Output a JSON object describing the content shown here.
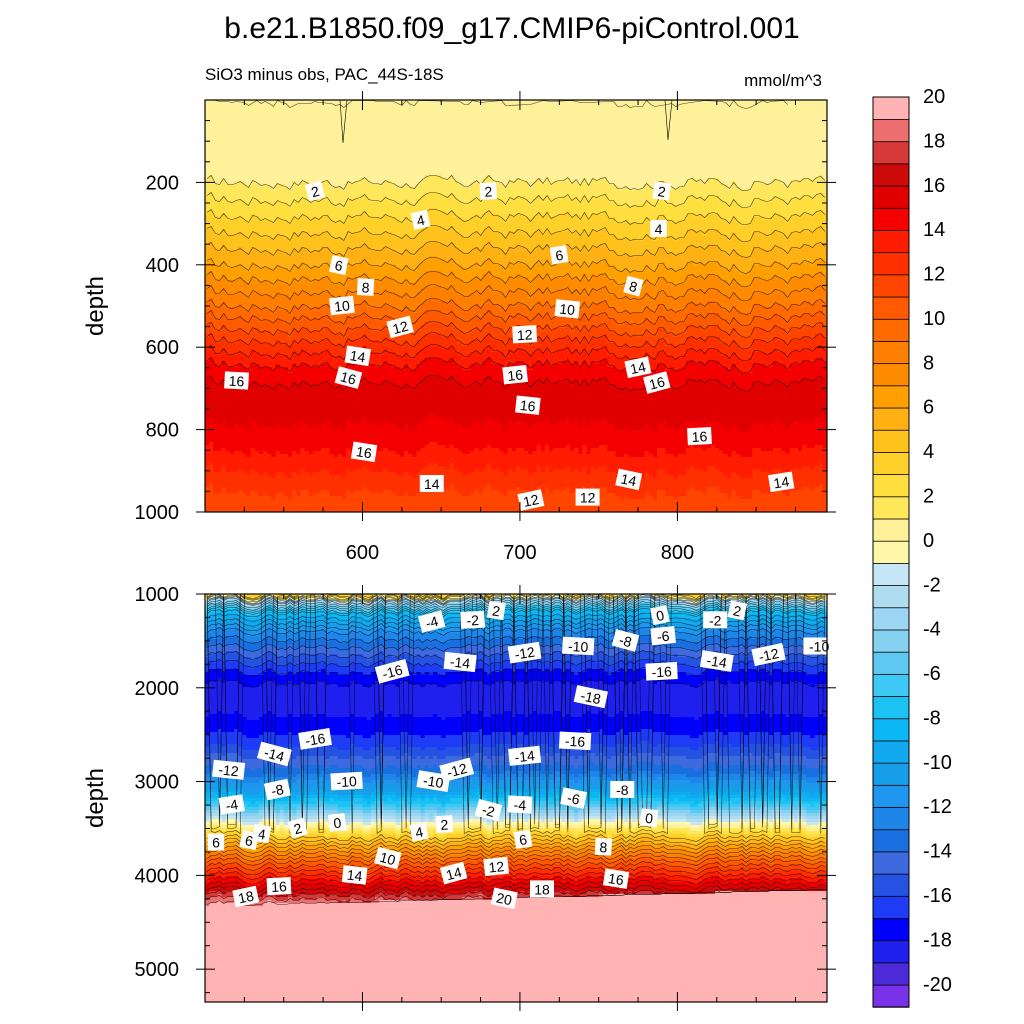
{
  "chart_data": [
    {
      "type": "heatmap",
      "panel": "upper",
      "title": "b.e21.B1850.f09_g17.CMIP6-piControl.001",
      "subtitle_left": "SiO3 minus obs, PAC_44S-18S",
      "subtitle_right": "mmol/m^3",
      "xlabel": "",
      "ylabel": "depth",
      "xlim": [
        500,
        895
      ],
      "ylim": [
        1000,
        0
      ],
      "xticks": [
        600,
        700,
        800
      ],
      "yticks": [
        200,
        400,
        600,
        800,
        1000
      ],
      "contour_levels_shown": [
        2,
        4,
        6,
        8,
        10,
        12,
        14,
        16
      ],
      "contour_labels": [
        {
          "text": "2",
          "x": 570,
          "y": 222
        },
        {
          "text": "2",
          "x": 680,
          "y": 222
        },
        {
          "text": "2",
          "x": 790,
          "y": 222
        },
        {
          "text": "4",
          "x": 637,
          "y": 292
        },
        {
          "text": "4",
          "x": 788,
          "y": 313
        },
        {
          "text": "6",
          "x": 585,
          "y": 402
        },
        {
          "text": "6",
          "x": 725,
          "y": 377
        },
        {
          "text": "8",
          "x": 602,
          "y": 455
        },
        {
          "text": "8",
          "x": 772,
          "y": 453
        },
        {
          "text": "10",
          "x": 587,
          "y": 500
        },
        {
          "text": "10",
          "x": 730,
          "y": 508
        },
        {
          "text": "12",
          "x": 624,
          "y": 552
        },
        {
          "text": "12",
          "x": 703,
          "y": 570
        },
        {
          "text": "14",
          "x": 597,
          "y": 622
        },
        {
          "text": "14",
          "x": 775,
          "y": 650
        },
        {
          "text": "14",
          "x": 644,
          "y": 932
        },
        {
          "text": "14",
          "x": 769,
          "y": 922
        },
        {
          "text": "14",
          "x": 866,
          "y": 928
        },
        {
          "text": "16",
          "x": 520,
          "y": 682
        },
        {
          "text": "16",
          "x": 591,
          "y": 675
        },
        {
          "text": "16",
          "x": 697,
          "y": 668
        },
        {
          "text": "16",
          "x": 705,
          "y": 742
        },
        {
          "text": "16",
          "x": 787,
          "y": 687
        },
        {
          "text": "16",
          "x": 814,
          "y": 817
        },
        {
          "text": "16",
          "x": 601,
          "y": 855
        },
        {
          "text": "12",
          "x": 707,
          "y": 972
        },
        {
          "text": "12",
          "x": 743,
          "y": 965
        }
      ]
    },
    {
      "type": "heatmap",
      "panel": "lower",
      "xlabel": "",
      "ylabel": "depth",
      "xlim": [
        500,
        895
      ],
      "ylim": [
        5350,
        1000
      ],
      "yticks": [
        1000,
        2000,
        3000,
        4000,
        5000
      ],
      "contour_labels": [
        {
          "text": "-4",
          "x": 644,
          "y": 1300
        },
        {
          "text": "-2",
          "x": 670,
          "y": 1280
        },
        {
          "text": "2",
          "x": 685,
          "y": 1180
        },
        {
          "text": "0",
          "x": 789,
          "y": 1230
        },
        {
          "text": "-2",
          "x": 824,
          "y": 1280
        },
        {
          "text": "2",
          "x": 838,
          "y": 1180
        },
        {
          "text": "-12",
          "x": 703,
          "y": 1630
        },
        {
          "text": "-10",
          "x": 737,
          "y": 1560
        },
        {
          "text": "-8",
          "x": 767,
          "y": 1500
        },
        {
          "text": "-6",
          "x": 791,
          "y": 1450
        },
        {
          "text": "-14",
          "x": 662,
          "y": 1730
        },
        {
          "text": "-16",
          "x": 619,
          "y": 1830
        },
        {
          "text": "-16",
          "x": 790,
          "y": 1830
        },
        {
          "text": "-14",
          "x": 825,
          "y": 1720
        },
        {
          "text": "-12",
          "x": 858,
          "y": 1650
        },
        {
          "text": "-10",
          "x": 890,
          "y": 1560
        },
        {
          "text": "-18",
          "x": 745,
          "y": 2100
        },
        {
          "text": "-16",
          "x": 570,
          "y": 2550
        },
        {
          "text": "-16",
          "x": 735,
          "y": 2570
        },
        {
          "text": "-14",
          "x": 544,
          "y": 2710
        },
        {
          "text": "-14",
          "x": 703,
          "y": 2730
        },
        {
          "text": "-12",
          "x": 515,
          "y": 2880
        },
        {
          "text": "-12",
          "x": 660,
          "y": 2880
        },
        {
          "text": "-10",
          "x": 590,
          "y": 3000
        },
        {
          "text": "-10",
          "x": 645,
          "y": 3000
        },
        {
          "text": "-8",
          "x": 546,
          "y": 3090
        },
        {
          "text": "-8",
          "x": 765,
          "y": 3090
        },
        {
          "text": "-6",
          "x": 734,
          "y": 3180
        },
        {
          "text": "-4",
          "x": 517,
          "y": 3250
        },
        {
          "text": "-4",
          "x": 700,
          "y": 3250
        },
        {
          "text": "-2",
          "x": 680,
          "y": 3310
        },
        {
          "text": "0",
          "x": 584,
          "y": 3440
        },
        {
          "text": "0",
          "x": 782,
          "y": 3390
        },
        {
          "text": "2",
          "x": 559,
          "y": 3500
        },
        {
          "text": "2",
          "x": 652,
          "y": 3460
        },
        {
          "text": "4",
          "x": 536,
          "y": 3560
        },
        {
          "text": "4",
          "x": 636,
          "y": 3540
        },
        {
          "text": "6",
          "x": 507,
          "y": 3650
        },
        {
          "text": "6",
          "x": 528,
          "y": 3630
        },
        {
          "text": "6",
          "x": 702,
          "y": 3620
        },
        {
          "text": "8",
          "x": 753,
          "y": 3700
        },
        {
          "text": "10",
          "x": 616,
          "y": 3820
        },
        {
          "text": "12",
          "x": 685,
          "y": 3910
        },
        {
          "text": "14",
          "x": 595,
          "y": 4000
        },
        {
          "text": "14",
          "x": 658,
          "y": 3980
        },
        {
          "text": "16",
          "x": 547,
          "y": 4120
        },
        {
          "text": "16",
          "x": 761,
          "y": 4040
        },
        {
          "text": "18",
          "x": 526,
          "y": 4230
        },
        {
          "text": "18",
          "x": 714,
          "y": 4150
        },
        {
          "text": "20",
          "x": 690,
          "y": 4250
        }
      ]
    }
  ],
  "colorbar": {
    "levels": [
      -20,
      -19,
      -18,
      -17,
      -16,
      -15,
      -14,
      -13,
      -12,
      -11,
      -10,
      -9,
      -8,
      -7,
      -6,
      -5,
      -4,
      -3,
      -2,
      -1,
      0,
      1,
      2,
      3,
      4,
      5,
      6,
      7,
      8,
      9,
      10,
      11,
      12,
      13,
      14,
      15,
      16,
      17,
      18,
      19,
      20
    ],
    "tick_labels": [
      "-20",
      "-18",
      "-16",
      "-14",
      "-12",
      "-10",
      "-8",
      "-6",
      "-4",
      "-2",
      "0",
      "2",
      "4",
      "6",
      "8",
      "10",
      "12",
      "14",
      "16",
      "18",
      "20"
    ],
    "colors": [
      "#7a32e8",
      "#4c2ad8",
      "#2020ee",
      "#0000ff",
      "#1e3cf5",
      "#2552e3",
      "#3e6adf",
      "#1a6fe0",
      "#1e86e8",
      "#1f96f0",
      "#169ee8",
      "#11a9f0",
      "#0bb7f4",
      "#1cc2f2",
      "#3dc9f5",
      "#5ec8f0",
      "#86d0f0",
      "#9dd6f2",
      "#b0dcf0",
      "#c4e6f6",
      "#fff7a8",
      "#fff19a",
      "#ffe75c",
      "#ffdf40",
      "#ffd02a",
      "#ffc21c",
      "#ffb012",
      "#ffa000",
      "#ff8c00",
      "#ff7f00",
      "#ff6b00",
      "#ff5a00",
      "#ff4500",
      "#ff3000",
      "#ff1c00",
      "#f40000",
      "#e00000",
      "#cc0a0a",
      "#d63838",
      "#ec6e6e",
      "#ffb3b3"
    ]
  }
}
